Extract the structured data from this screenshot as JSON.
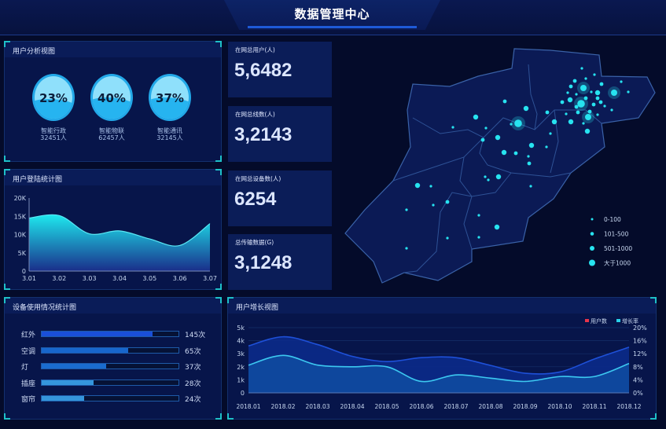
{
  "header": {
    "title": "数据管理中心"
  },
  "user_analysis": {
    "title": "用户分析视图",
    "items": [
      {
        "percent": "23%",
        "fill": 0.23,
        "name": "智能行政",
        "count": "32451人"
      },
      {
        "percent": "40%",
        "fill": 0.4,
        "name": "智能物联",
        "count": "62457人"
      },
      {
        "percent": "37%",
        "fill": 0.37,
        "name": "智能通讯",
        "count": "32145人"
      }
    ]
  },
  "stats": [
    {
      "label": "在网总用户(人)",
      "value": "5,6482"
    },
    {
      "label": "在网总线数(人)",
      "value": "3,2143"
    },
    {
      "label": "在网总设备数(人)",
      "value": "6254"
    },
    {
      "label": "总传输数据(G)",
      "value": "3,1248"
    }
  ],
  "map": {
    "legend": [
      "0-100",
      "101-500",
      "501-1000",
      "大于1000"
    ],
    "dot_color": "#27e3f0"
  },
  "device_usage": {
    "title": "设备使用情况统计图",
    "items": [
      {
        "label": "红外",
        "value": "145次",
        "fill": 0.81,
        "color": "#1a4fd8"
      },
      {
        "label": "空调",
        "value": "65次",
        "fill": 0.63,
        "color": "#1766cc"
      },
      {
        "label": "灯",
        "value": "37次",
        "fill": 0.47,
        "color": "#1a6ccf"
      },
      {
        "label": "插座",
        "value": "28次",
        "fill": 0.38,
        "color": "#3596dc"
      },
      {
        "label": "窗帘",
        "value": "24次",
        "fill": 0.31,
        "color": "#3596dc"
      }
    ]
  },
  "chart_data": [
    {
      "type": "area",
      "title": "用户登陆统计图",
      "categories": [
        "3.01",
        "3.02",
        "3.03",
        "3.04",
        "3.05",
        "3.06",
        "3.07"
      ],
      "values": [
        14500,
        15200,
        10200,
        11000,
        8800,
        7000,
        13000
      ],
      "yticks": [
        "0",
        "5K",
        "10K",
        "15K",
        "20K"
      ],
      "ylim": [
        0,
        20000
      ],
      "color": "#20e0ee"
    },
    {
      "type": "area",
      "title": "用户增长视图",
      "categories": [
        "2018.01",
        "2018.02",
        "2018.03",
        "2018.04",
        "2018.05",
        "2018.06",
        "2018.07",
        "2018.08",
        "2018.09",
        "2018.10",
        "2018.11",
        "2018.12"
      ],
      "series": [
        {
          "name": "用户数",
          "axis": "left",
          "values": [
            3600,
            4300,
            3700,
            2800,
            2400,
            2700,
            2700,
            2100,
            1500,
            1600,
            2600,
            3500
          ],
          "legend_color": "#e8344a",
          "line_color": "#1e50d8"
        },
        {
          "name": "增长率",
          "axis": "right",
          "values": [
            8.5,
            11.5,
            8.5,
            8,
            8,
            3.5,
            5.5,
            4.5,
            3.5,
            5,
            5,
            9
          ],
          "legend_color": "#28d0e8",
          "line_color": "#3cc8f0"
        }
      ],
      "yticks_left": [
        "0",
        "1k",
        "2k",
        "3k",
        "4k",
        "5k"
      ],
      "ylim_left": [
        0,
        5000
      ],
      "yticks_right": [
        "0%",
        "4%",
        "8%",
        "12%",
        "16%",
        "20%"
      ],
      "ylim_right": [
        0,
        20
      ]
    }
  ]
}
